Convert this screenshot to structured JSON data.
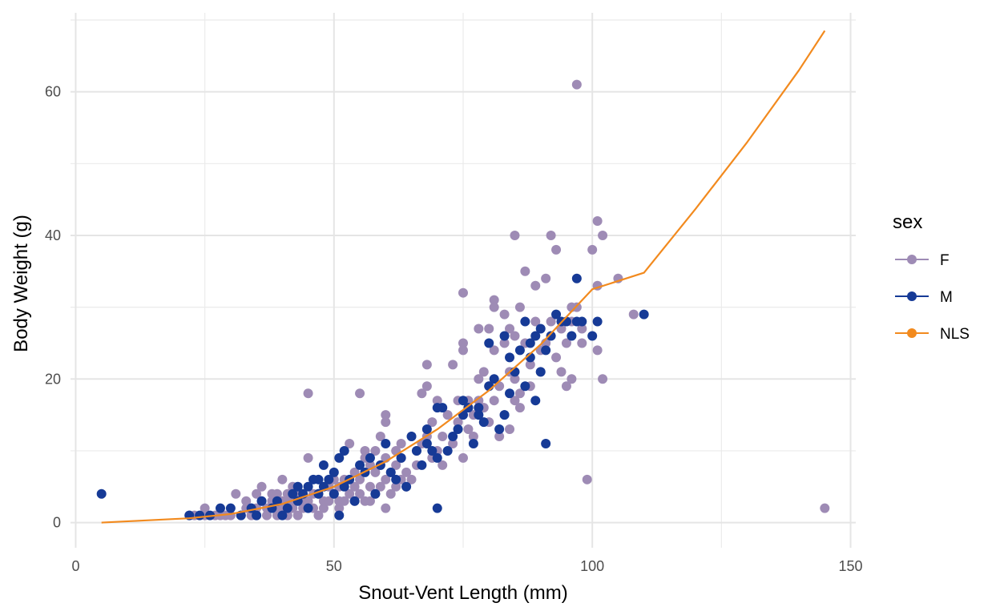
{
  "chart_data": {
    "type": "scatter",
    "xlabel": "Snout-Vent Length (mm)",
    "ylabel": "Body Weight (g)",
    "xlim": [
      -1,
      151
    ],
    "ylim": [
      -3.5,
      71
    ],
    "x_ticks": [
      0,
      50,
      100,
      150
    ],
    "x_tick_labels": [
      "0",
      "50",
      "100",
      "150"
    ],
    "y_ticks": [
      0,
      20,
      40,
      60
    ],
    "y_tick_labels": [
      "0",
      "20",
      "40",
      "60"
    ],
    "x_minor_gridlines": [
      25,
      75,
      125
    ],
    "y_minor_gridlines": [
      10,
      30,
      50,
      70
    ],
    "grid": true,
    "legend": {
      "title": "sex",
      "position": "right",
      "entries": [
        {
          "label": "F",
          "color": "#9E8BB5"
        },
        {
          "label": "M",
          "color": "#163A96"
        },
        {
          "label": "NLS",
          "color": "#F28A1E"
        }
      ]
    },
    "series": [
      {
        "name": "F",
        "kind": "points",
        "color": "#9E8BB5",
        "points": [
          [
            22,
            1
          ],
          [
            23,
            1
          ],
          [
            25,
            1
          ],
          [
            25,
            2
          ],
          [
            27,
            1
          ],
          [
            28,
            1
          ],
          [
            29,
            1
          ],
          [
            30,
            1
          ],
          [
            31,
            4
          ],
          [
            32,
            1
          ],
          [
            33,
            2
          ],
          [
            33,
            3
          ],
          [
            34,
            1
          ],
          [
            34,
            2
          ],
          [
            35,
            1
          ],
          [
            35,
            2
          ],
          [
            35,
            4
          ],
          [
            36,
            3
          ],
          [
            36,
            5
          ],
          [
            37,
            2
          ],
          [
            37,
            1
          ],
          [
            38,
            3
          ],
          [
            38,
            4
          ],
          [
            39,
            1
          ],
          [
            39,
            2
          ],
          [
            39,
            4
          ],
          [
            40,
            2
          ],
          [
            40,
            3
          ],
          [
            40,
            6
          ],
          [
            41,
            1
          ],
          [
            41,
            3
          ],
          [
            41,
            4
          ],
          [
            42,
            2
          ],
          [
            42,
            3
          ],
          [
            42,
            5
          ],
          [
            43,
            1
          ],
          [
            43,
            4
          ],
          [
            44,
            2
          ],
          [
            44,
            3
          ],
          [
            45,
            3
          ],
          [
            45,
            9
          ],
          [
            45,
            18
          ],
          [
            46,
            2
          ],
          [
            46,
            4
          ],
          [
            47,
            1
          ],
          [
            47,
            4
          ],
          [
            48,
            2
          ],
          [
            48,
            3
          ],
          [
            49,
            3
          ],
          [
            49,
            5
          ],
          [
            50,
            4
          ],
          [
            50,
            6
          ],
          [
            51,
            2
          ],
          [
            51,
            3
          ],
          [
            51,
            5
          ],
          [
            52,
            3
          ],
          [
            52,
            6
          ],
          [
            53,
            4
          ],
          [
            53,
            11
          ],
          [
            54,
            3
          ],
          [
            54,
            5
          ],
          [
            54,
            7
          ],
          [
            55,
            4
          ],
          [
            55,
            6
          ],
          [
            55,
            18
          ],
          [
            56,
            3
          ],
          [
            56,
            9
          ],
          [
            56,
            10
          ],
          [
            57,
            3
          ],
          [
            57,
            5
          ],
          [
            57,
            8
          ],
          [
            58,
            4
          ],
          [
            58,
            7
          ],
          [
            58,
            10
          ],
          [
            59,
            5
          ],
          [
            59,
            8
          ],
          [
            59,
            12
          ],
          [
            60,
            2
          ],
          [
            60,
            6
          ],
          [
            60,
            9
          ],
          [
            60,
            14
          ],
          [
            60,
            15
          ],
          [
            61,
            4
          ],
          [
            61,
            7
          ],
          [
            62,
            5
          ],
          [
            62,
            8
          ],
          [
            62,
            10
          ],
          [
            63,
            11
          ],
          [
            63,
            9
          ],
          [
            63,
            6
          ],
          [
            64,
            5
          ],
          [
            64,
            7
          ],
          [
            65,
            6
          ],
          [
            65,
            12
          ],
          [
            66,
            8
          ],
          [
            66,
            10
          ],
          [
            67,
            11
          ],
          [
            67,
            18
          ],
          [
            68,
            19
          ],
          [
            68,
            22
          ],
          [
            68,
            12
          ],
          [
            69,
            14
          ],
          [
            69,
            9
          ],
          [
            70,
            10
          ],
          [
            70,
            17
          ],
          [
            71,
            12
          ],
          [
            71,
            8
          ],
          [
            72,
            15
          ],
          [
            73,
            22
          ],
          [
            73,
            11
          ],
          [
            74,
            17
          ],
          [
            74,
            14
          ],
          [
            75,
            24
          ],
          [
            75,
            25
          ],
          [
            75,
            32
          ],
          [
            75,
            9
          ],
          [
            76,
            17
          ],
          [
            76,
            13
          ],
          [
            77,
            15
          ],
          [
            77,
            12
          ],
          [
            78,
            20
          ],
          [
            78,
            27
          ],
          [
            78,
            17
          ],
          [
            79,
            16
          ],
          [
            79,
            21
          ],
          [
            80,
            27
          ],
          [
            80,
            19
          ],
          [
            80,
            14
          ],
          [
            81,
            31
          ],
          [
            81,
            30
          ],
          [
            81,
            24
          ],
          [
            81,
            17
          ],
          [
            82,
            19
          ],
          [
            82,
            12
          ],
          [
            83,
            25
          ],
          [
            83,
            29
          ],
          [
            83,
            15
          ],
          [
            84,
            21
          ],
          [
            84,
            27
          ],
          [
            84,
            13
          ],
          [
            85,
            40
          ],
          [
            85,
            26
          ],
          [
            85,
            20
          ],
          [
            85,
            17
          ],
          [
            86,
            30
          ],
          [
            86,
            18
          ],
          [
            86,
            16
          ],
          [
            87,
            35
          ],
          [
            87,
            25
          ],
          [
            88,
            22
          ],
          [
            88,
            19
          ],
          [
            89,
            33
          ],
          [
            89,
            28
          ],
          [
            90,
            24
          ],
          [
            90,
            21
          ],
          [
            91,
            34
          ],
          [
            91,
            25
          ],
          [
            92,
            40
          ],
          [
            92,
            28
          ],
          [
            93,
            38
          ],
          [
            93,
            23
          ],
          [
            94,
            27
          ],
          [
            94,
            21
          ],
          [
            95,
            25
          ],
          [
            95,
            19
          ],
          [
            96,
            30
          ],
          [
            96,
            28
          ],
          [
            96,
            20
          ],
          [
            97,
            30
          ],
          [
            97,
            61
          ],
          [
            98,
            27
          ],
          [
            98,
            25
          ],
          [
            99,
            6
          ],
          [
            100,
            38
          ],
          [
            101,
            42
          ],
          [
            101,
            33
          ],
          [
            101,
            24
          ],
          [
            102,
            20
          ],
          [
            102,
            40
          ],
          [
            105,
            34
          ],
          [
            108,
            29
          ],
          [
            145,
            2
          ]
        ]
      },
      {
        "name": "M",
        "kind": "points",
        "color": "#163A96",
        "points": [
          [
            5,
            4
          ],
          [
            22,
            1
          ],
          [
            24,
            1
          ],
          [
            26,
            1
          ],
          [
            28,
            2
          ],
          [
            30,
            2
          ],
          [
            32,
            1
          ],
          [
            34,
            2
          ],
          [
            35,
            1
          ],
          [
            36,
            3
          ],
          [
            38,
            2
          ],
          [
            39,
            3
          ],
          [
            40,
            1
          ],
          [
            41,
            2
          ],
          [
            42,
            4
          ],
          [
            43,
            3
          ],
          [
            43,
            5
          ],
          [
            44,
            4
          ],
          [
            45,
            5
          ],
          [
            45,
            2
          ],
          [
            46,
            6
          ],
          [
            47,
            4
          ],
          [
            47,
            6
          ],
          [
            48,
            8
          ],
          [
            48,
            5
          ],
          [
            49,
            6
          ],
          [
            50,
            7
          ],
          [
            50,
            4
          ],
          [
            51,
            9
          ],
          [
            51,
            1
          ],
          [
            52,
            10
          ],
          [
            52,
            5
          ],
          [
            53,
            6
          ],
          [
            54,
            3
          ],
          [
            55,
            8
          ],
          [
            56,
            7
          ],
          [
            57,
            9
          ],
          [
            58,
            4
          ],
          [
            59,
            8
          ],
          [
            60,
            11
          ],
          [
            61,
            7
          ],
          [
            62,
            6
          ],
          [
            63,
            9
          ],
          [
            64,
            5
          ],
          [
            65,
            12
          ],
          [
            66,
            10
          ],
          [
            67,
            8
          ],
          [
            68,
            13
          ],
          [
            68,
            11
          ],
          [
            69,
            10
          ],
          [
            70,
            16
          ],
          [
            70,
            9
          ],
          [
            70,
            2
          ],
          [
            71,
            16
          ],
          [
            72,
            10
          ],
          [
            73,
            12
          ],
          [
            74,
            13
          ],
          [
            75,
            15
          ],
          [
            75,
            17
          ],
          [
            76,
            16
          ],
          [
            77,
            11
          ],
          [
            78,
            15
          ],
          [
            78,
            16
          ],
          [
            79,
            14
          ],
          [
            80,
            25
          ],
          [
            80,
            19
          ],
          [
            81,
            20
          ],
          [
            82,
            13
          ],
          [
            83,
            26
          ],
          [
            83,
            15
          ],
          [
            84,
            23
          ],
          [
            84,
            18
          ],
          [
            85,
            21
          ],
          [
            86,
            24
          ],
          [
            87,
            28
          ],
          [
            87,
            19
          ],
          [
            88,
            23
          ],
          [
            88,
            25
          ],
          [
            89,
            17
          ],
          [
            89,
            26
          ],
          [
            90,
            27
          ],
          [
            90,
            21
          ],
          [
            91,
            11
          ],
          [
            91,
            24
          ],
          [
            92,
            26
          ],
          [
            93,
            29
          ],
          [
            94,
            28
          ],
          [
            95,
            28
          ],
          [
            96,
            26
          ],
          [
            97,
            34
          ],
          [
            97,
            28
          ],
          [
            98,
            28
          ],
          [
            100,
            26
          ],
          [
            101,
            28
          ],
          [
            110,
            29
          ]
        ]
      },
      {
        "name": "NLS",
        "kind": "line",
        "color": "#F28A1E",
        "points": [
          [
            5,
            0
          ],
          [
            22,
            0.6
          ],
          [
            30,
            1.2
          ],
          [
            40,
            2.6
          ],
          [
            50,
            5.0
          ],
          [
            60,
            8.5
          ],
          [
            70,
            13.0
          ],
          [
            80,
            18.4
          ],
          [
            90,
            24.8
          ],
          [
            100,
            32.5
          ],
          [
            110,
            34.8
          ],
          [
            120,
            43.7
          ],
          [
            130,
            53.0
          ],
          [
            140,
            63.0
          ],
          [
            145,
            68.5
          ]
        ]
      }
    ]
  }
}
